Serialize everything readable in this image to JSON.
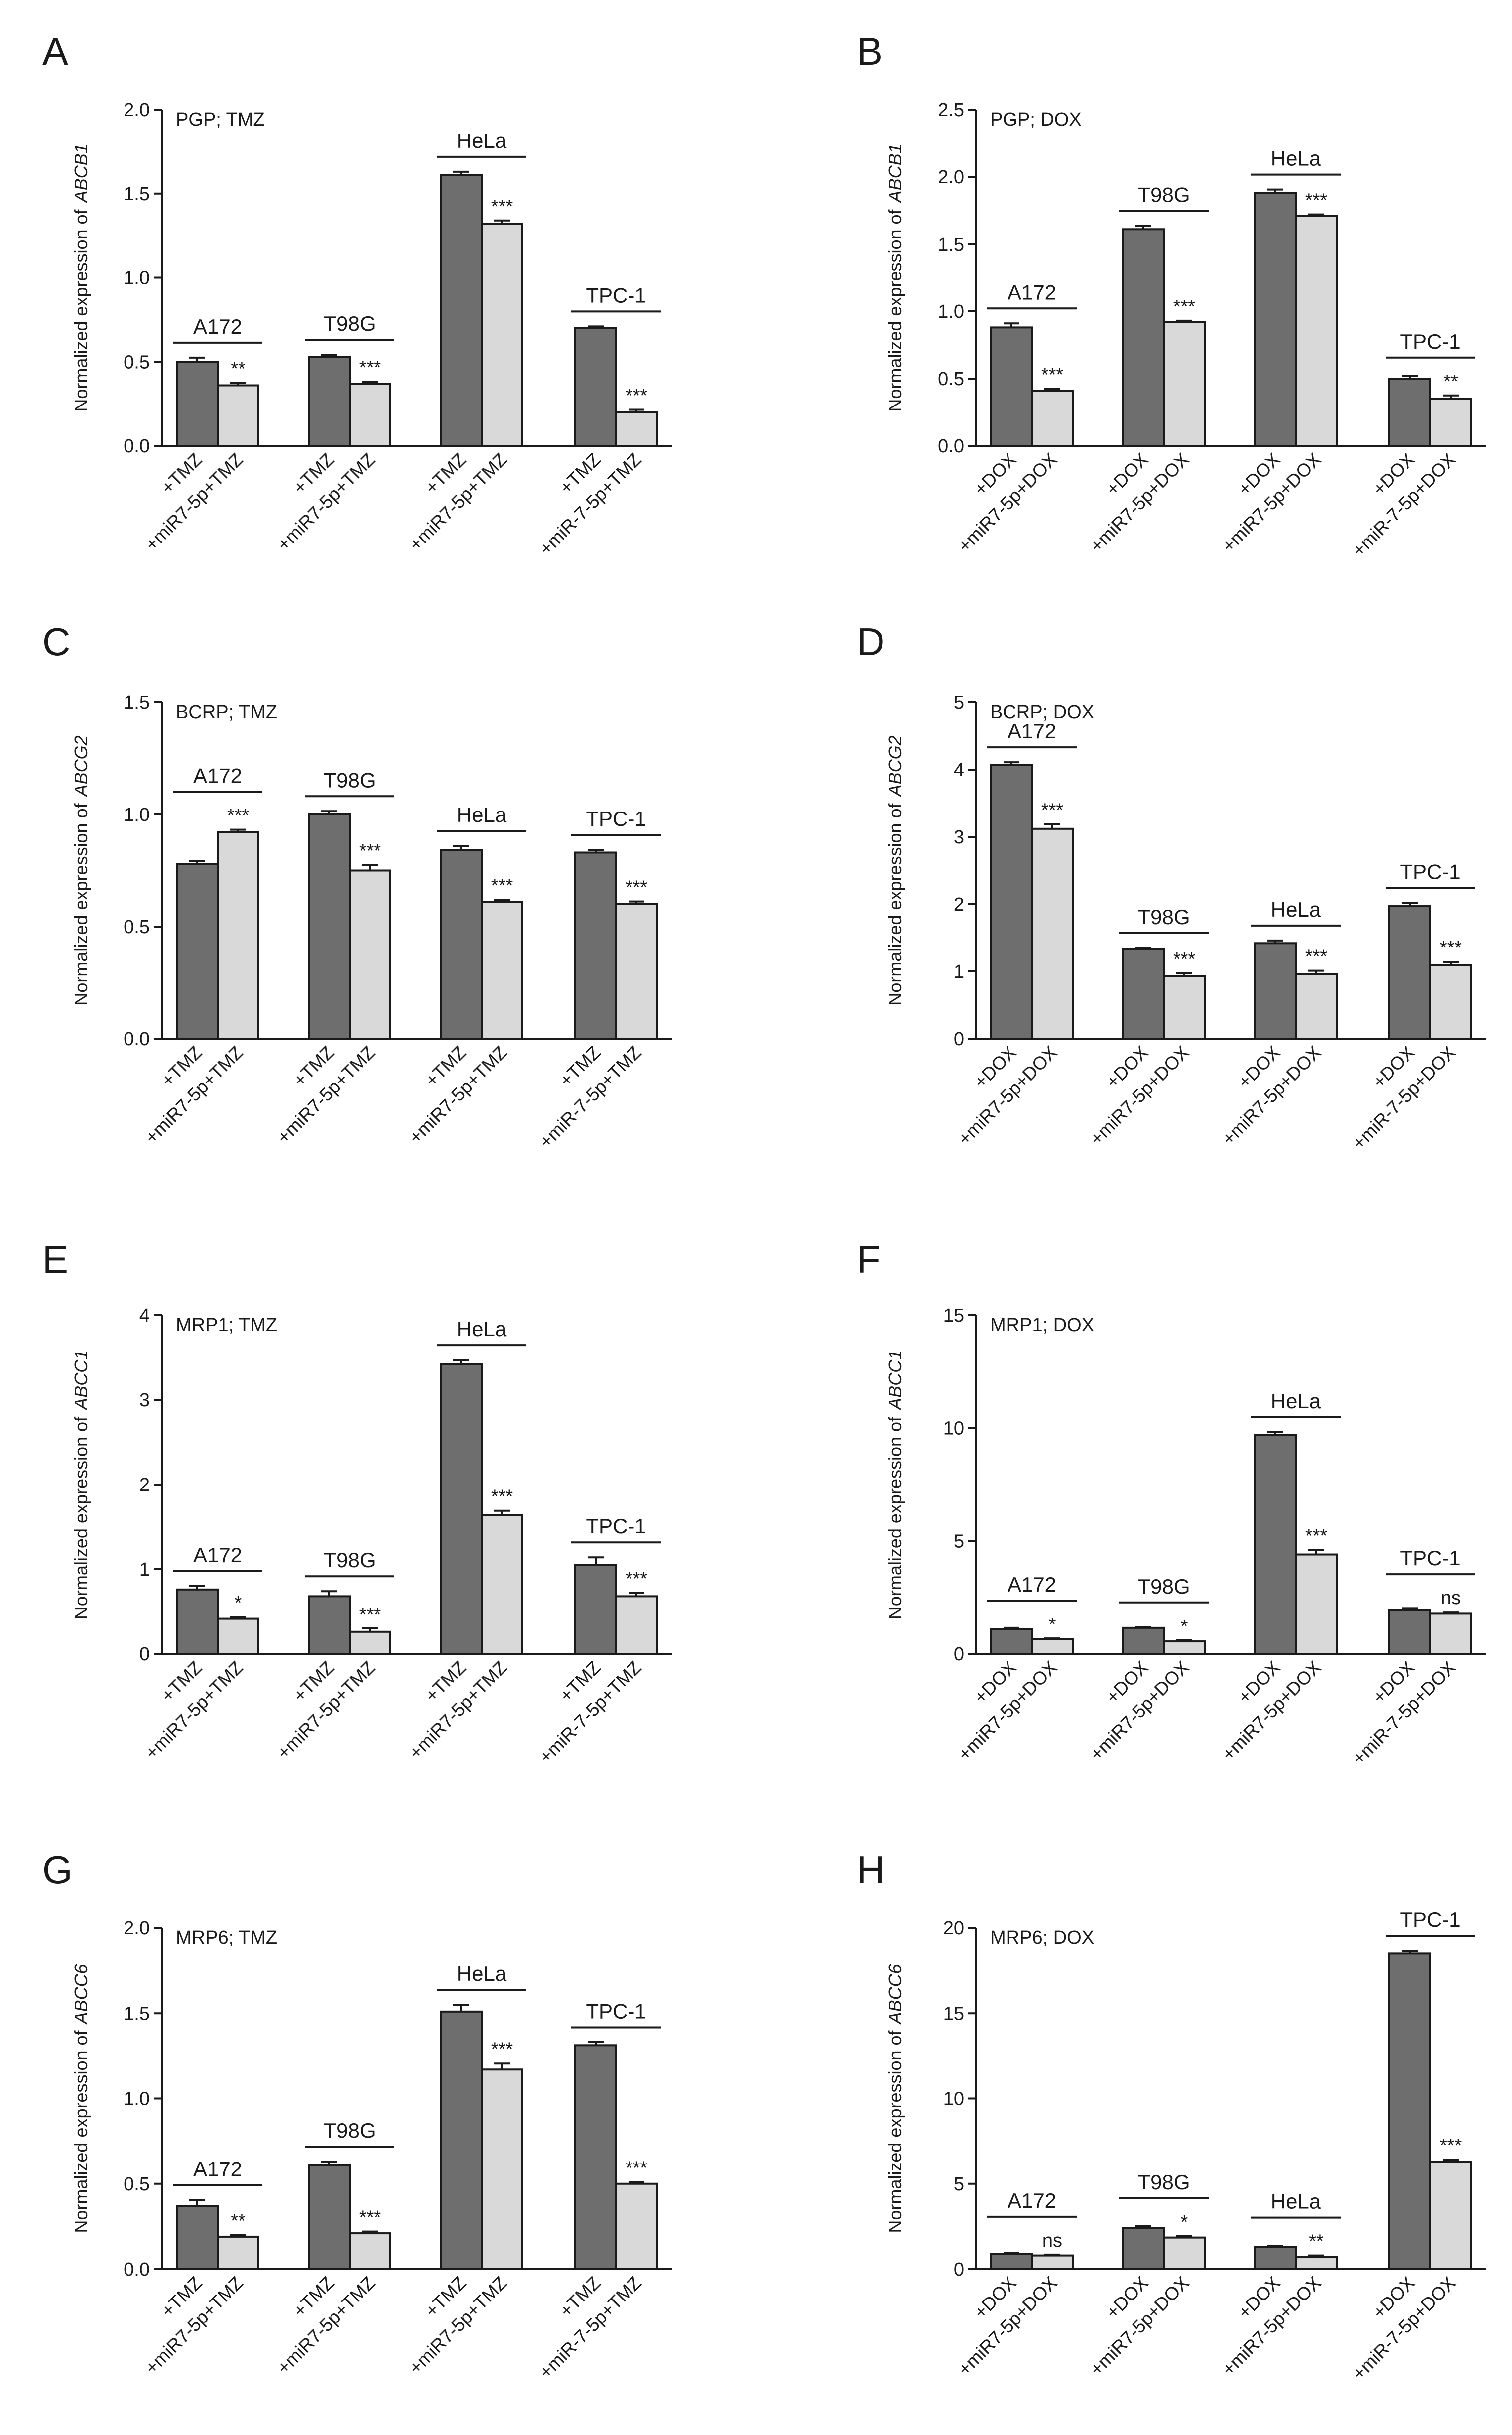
{
  "figure": {
    "background": "#ffffff"
  },
  "colors": {
    "treated": "#6e6e6e",
    "combo": "#d9d9d9",
    "edge": "#1a1a1a"
  },
  "chart_data": [
    {
      "type": "bar",
      "panel": "A",
      "inset": "PGP; TMZ",
      "ylabel_prefix": "Normalized expression of",
      "ylabel_gene": "ABCB1",
      "ylim": [
        0,
        2.0
      ],
      "yticks": [
        "0.0",
        "0.5",
        "1.0",
        "1.5",
        "2.0"
      ],
      "groups": [
        {
          "name": "A172",
          "bars": [
            {
              "label": "+TMZ",
              "value": 0.5,
              "err": 0.025
            },
            {
              "label": "+miR7-5p+TMZ",
              "value": 0.36,
              "err": 0.015,
              "sig": "**"
            }
          ]
        },
        {
          "name": "T98G",
          "bars": [
            {
              "label": "+TMZ",
              "value": 0.53,
              "err": 0.012
            },
            {
              "label": "+miR7-5p+TMZ",
              "value": 0.37,
              "err": 0.012,
              "sig": "***"
            }
          ]
        },
        {
          "name": "HeLa",
          "bars": [
            {
              "label": "+TMZ",
              "value": 1.61,
              "err": 0.02
            },
            {
              "label": "+miR7-5p+TMZ",
              "value": 1.32,
              "err": 0.02,
              "sig": "***"
            }
          ]
        },
        {
          "name": "TPC-1",
          "bars": [
            {
              "label": "+TMZ",
              "value": 0.7,
              "err": 0.01
            },
            {
              "label": "+miR-7-5p+TMZ",
              "value": 0.2,
              "err": 0.015,
              "sig": "***"
            }
          ]
        }
      ]
    },
    {
      "type": "bar",
      "panel": "B",
      "inset": "PGP; DOX",
      "ylabel_prefix": "Normalized expression of",
      "ylabel_gene": "ABCB1",
      "ylim": [
        0,
        2.5
      ],
      "yticks": [
        "0.0",
        "0.5",
        "1.0",
        "1.5",
        "2.0",
        "2.5"
      ],
      "groups": [
        {
          "name": "A172",
          "bars": [
            {
              "label": "+DOX",
              "value": 0.88,
              "err": 0.03
            },
            {
              "label": "+miR7-5p+DOX",
              "value": 0.41,
              "err": 0.015,
              "sig": "***"
            }
          ]
        },
        {
          "name": "T98G",
          "bars": [
            {
              "label": "+DOX",
              "value": 1.61,
              "err": 0.025
            },
            {
              "label": "+miR7-5p+DOX",
              "value": 0.92,
              "err": 0.01,
              "sig": "***"
            }
          ]
        },
        {
          "name": "HeLa",
          "bars": [
            {
              "label": "+DOX",
              "value": 1.88,
              "err": 0.025
            },
            {
              "label": "+miR7-5p+DOX",
              "value": 1.71,
              "err": 0.01,
              "sig": "***"
            }
          ]
        },
        {
          "name": "TPC-1",
          "bars": [
            {
              "label": "+DOX",
              "value": 0.5,
              "err": 0.02
            },
            {
              "label": "+miR-7-5p+DOX",
              "value": 0.35,
              "err": 0.025,
              "sig": "**"
            }
          ]
        }
      ]
    },
    {
      "type": "bar",
      "panel": "C",
      "inset": "BCRP; TMZ",
      "ylabel_prefix": "Normalized expression of",
      "ylabel_gene": "ABCG2",
      "ylim": [
        0,
        1.5
      ],
      "yticks": [
        "0.0",
        "0.5",
        "1.0",
        "1.5"
      ],
      "groups": [
        {
          "name": "A172",
          "bars": [
            {
              "label": "+TMZ",
              "value": 0.78,
              "err": 0.012
            },
            {
              "label": "+miR7-5p+TMZ",
              "value": 0.92,
              "err": 0.012,
              "sig": "***"
            }
          ]
        },
        {
          "name": "T98G",
          "bars": [
            {
              "label": "+TMZ",
              "value": 1.0,
              "err": 0.015
            },
            {
              "label": "+miR7-5p+TMZ",
              "value": 0.75,
              "err": 0.025,
              "sig": "***"
            }
          ]
        },
        {
          "name": "HeLa",
          "bars": [
            {
              "label": "+TMZ",
              "value": 0.84,
              "err": 0.02
            },
            {
              "label": "+miR7-5p+TMZ",
              "value": 0.61,
              "err": 0.01,
              "sig": "***"
            }
          ]
        },
        {
          "name": "TPC-1",
          "bars": [
            {
              "label": "+TMZ",
              "value": 0.83,
              "err": 0.012
            },
            {
              "label": "+miR-7-5p+TMZ",
              "value": 0.6,
              "err": 0.012,
              "sig": "***"
            }
          ]
        }
      ]
    },
    {
      "type": "bar",
      "panel": "D",
      "inset": "BCRP; DOX",
      "ylabel_prefix": "Normalized expression of",
      "ylabel_gene": "ABCG2",
      "ylim": [
        0,
        5
      ],
      "yticks": [
        "0",
        "1",
        "2",
        "3",
        "4",
        "5"
      ],
      "groups": [
        {
          "name": "A172",
          "bars": [
            {
              "label": "+DOX",
              "value": 4.07,
              "err": 0.04
            },
            {
              "label": "+miR7-5p+DOX",
              "value": 3.12,
              "err": 0.07,
              "sig": "***"
            }
          ]
        },
        {
          "name": "T98G",
          "bars": [
            {
              "label": "+DOX",
              "value": 1.33,
              "err": 0.02
            },
            {
              "label": "+miR7-5p+DOX",
              "value": 0.93,
              "err": 0.04,
              "sig": "***"
            }
          ]
        },
        {
          "name": "HeLa",
          "bars": [
            {
              "label": "+DOX",
              "value": 1.42,
              "err": 0.04
            },
            {
              "label": "+miR7-5p+DOX",
              "value": 0.96,
              "err": 0.05,
              "sig": "***"
            }
          ]
        },
        {
          "name": "TPC-1",
          "bars": [
            {
              "label": "+DOX",
              "value": 1.97,
              "err": 0.05
            },
            {
              "label": "+miR-7-5p+DOX",
              "value": 1.09,
              "err": 0.05,
              "sig": "***"
            }
          ]
        }
      ]
    },
    {
      "type": "bar",
      "panel": "E",
      "inset": "MRP1; TMZ",
      "ylabel_prefix": "Normalized expression of",
      "ylabel_gene": "ABCC1",
      "ylim": [
        0,
        4
      ],
      "yticks": [
        "0",
        "1",
        "2",
        "3",
        "4"
      ],
      "groups": [
        {
          "name": "A172",
          "bars": [
            {
              "label": "+TMZ",
              "value": 0.76,
              "err": 0.04
            },
            {
              "label": "+miR7-5p+TMZ",
              "value": 0.42,
              "err": 0.015,
              "sig": "*"
            }
          ]
        },
        {
          "name": "T98G",
          "bars": [
            {
              "label": "+TMZ",
              "value": 0.68,
              "err": 0.06
            },
            {
              "label": "+miR7-5p+TMZ",
              "value": 0.26,
              "err": 0.04,
              "sig": "***"
            }
          ]
        },
        {
          "name": "HeLa",
          "bars": [
            {
              "label": "+TMZ",
              "value": 3.42,
              "err": 0.05
            },
            {
              "label": "+miR7-5p+TMZ",
              "value": 1.64,
              "err": 0.05,
              "sig": "***"
            }
          ]
        },
        {
          "name": "TPC-1",
          "bars": [
            {
              "label": "+TMZ",
              "value": 1.05,
              "err": 0.09
            },
            {
              "label": "+miR-7-5p+TMZ",
              "value": 0.68,
              "err": 0.04,
              "sig": "***"
            }
          ]
        }
      ]
    },
    {
      "type": "bar",
      "panel": "F",
      "inset": "MRP1; DOX",
      "ylabel_prefix": "Normalized expression of",
      "ylabel_gene": "ABCC1",
      "ylim": [
        0,
        15
      ],
      "yticks": [
        "0",
        "5",
        "10",
        "15"
      ],
      "groups": [
        {
          "name": "A172",
          "bars": [
            {
              "label": "+DOX",
              "value": 1.1,
              "err": 0.05
            },
            {
              "label": "+miR7-5p+DOX",
              "value": 0.65,
              "err": 0.03,
              "sig": "*"
            }
          ]
        },
        {
          "name": "T98G",
          "bars": [
            {
              "label": "+DOX",
              "value": 1.15,
              "err": 0.04
            },
            {
              "label": "+miR7-5p+DOX",
              "value": 0.55,
              "err": 0.05,
              "sig": "*"
            }
          ]
        },
        {
          "name": "HeLa",
          "bars": [
            {
              "label": "+DOX",
              "value": 9.7,
              "err": 0.12
            },
            {
              "label": "+miR7-5p+DOX",
              "value": 4.4,
              "err": 0.2,
              "sig": "***"
            }
          ]
        },
        {
          "name": "TPC-1",
          "bars": [
            {
              "label": "+DOX",
              "value": 1.95,
              "err": 0.07
            },
            {
              "label": "+miR-7-5p+DOX",
              "value": 1.8,
              "err": 0.05,
              "sig": "ns"
            }
          ]
        }
      ]
    },
    {
      "type": "bar",
      "panel": "G",
      "inset": "MRP6; TMZ",
      "ylabel_prefix": "Normalized expression of",
      "ylabel_gene": "ABCC6",
      "ylim": [
        0,
        2.0
      ],
      "yticks": [
        "0.0",
        "0.5",
        "1.0",
        "1.5",
        "2.0"
      ],
      "groups": [
        {
          "name": "A172",
          "bars": [
            {
              "label": "+TMZ",
              "value": 0.37,
              "err": 0.035
            },
            {
              "label": "+miR7-5p+TMZ",
              "value": 0.19,
              "err": 0.01,
              "sig": "**"
            }
          ]
        },
        {
          "name": "T98G",
          "bars": [
            {
              "label": "+TMZ",
              "value": 0.61,
              "err": 0.02
            },
            {
              "label": "+miR7-5p+TMZ",
              "value": 0.21,
              "err": 0.01,
              "sig": "***"
            }
          ]
        },
        {
          "name": "HeLa",
          "bars": [
            {
              "label": "+TMZ",
              "value": 1.51,
              "err": 0.04
            },
            {
              "label": "+miR7-5p+TMZ",
              "value": 1.17,
              "err": 0.035,
              "sig": "***"
            }
          ]
        },
        {
          "name": "TPC-1",
          "bars": [
            {
              "label": "+TMZ",
              "value": 1.31,
              "err": 0.02
            },
            {
              "label": "+miR-7-5p+TMZ",
              "value": 0.5,
              "err": 0.01,
              "sig": "***"
            }
          ]
        }
      ]
    },
    {
      "type": "bar",
      "panel": "H",
      "inset": "MRP6; DOX",
      "ylabel_prefix": "Normalized expression of",
      "ylabel_gene": "ABCC6",
      "ylim": [
        0,
        20
      ],
      "yticks": [
        "0",
        "5",
        "10",
        "15",
        "20"
      ],
      "groups": [
        {
          "name": "A172",
          "bars": [
            {
              "label": "+DOX",
              "value": 0.9,
              "err": 0.05
            },
            {
              "label": "+miR7-5p+DOX",
              "value": 0.8,
              "err": 0.05,
              "sig": "ns"
            }
          ]
        },
        {
          "name": "T98G",
          "bars": [
            {
              "label": "+DOX",
              "value": 2.4,
              "err": 0.12
            },
            {
              "label": "+miR7-5p+DOX",
              "value": 1.85,
              "err": 0.08,
              "sig": "*"
            }
          ]
        },
        {
          "name": "HeLa",
          "bars": [
            {
              "label": "+DOX",
              "value": 1.3,
              "err": 0.06
            },
            {
              "label": "+miR7-5p+DOX",
              "value": 0.7,
              "err": 0.1,
              "sig": "**"
            }
          ]
        },
        {
          "name": "TPC-1",
          "bars": [
            {
              "label": "+DOX",
              "value": 18.5,
              "err": 0.15
            },
            {
              "label": "+miR-7-5p+DOX",
              "value": 6.3,
              "err": 0.12,
              "sig": "***"
            }
          ]
        }
      ]
    }
  ]
}
